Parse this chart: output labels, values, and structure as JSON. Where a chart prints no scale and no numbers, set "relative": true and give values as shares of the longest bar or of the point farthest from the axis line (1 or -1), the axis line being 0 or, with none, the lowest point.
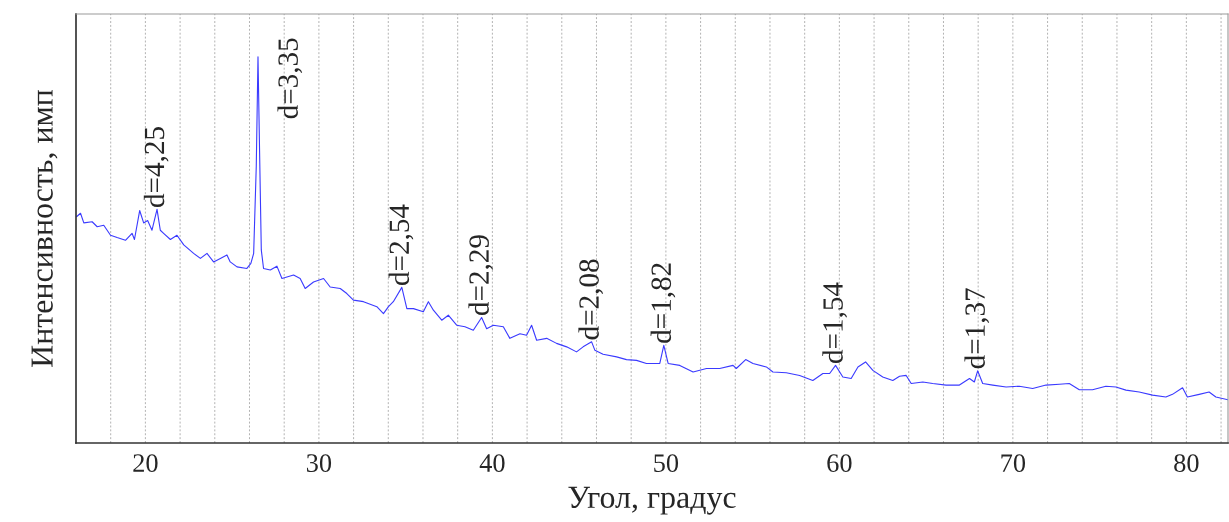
{
  "chart_data": {
    "type": "line",
    "relative": true,
    "xlabel": "Угол, градус",
    "ylabel": "Интенсивность, имп",
    "xlim": [
      16,
      82.4
    ],
    "xticks": [
      {
        "value": 18,
        "label": null
      },
      20,
      {
        "value": 22,
        "label": null
      },
      {
        "value": 24,
        "label": null
      },
      {
        "value": 26,
        "label": null
      },
      {
        "value": 28,
        "label": null
      },
      30,
      {
        "value": 32,
        "label": null
      },
      {
        "value": 34,
        "label": null
      },
      {
        "value": 36,
        "label": null
      },
      {
        "value": 38,
        "label": null
      },
      40,
      {
        "value": 42,
        "label": null
      },
      {
        "value": 44,
        "label": null
      },
      {
        "value": 46,
        "label": null
      },
      {
        "value": 48,
        "label": null
      },
      50,
      {
        "value": 52,
        "label": null
      },
      {
        "value": 54,
        "label": null
      },
      {
        "value": 56,
        "label": null
      },
      {
        "value": 58,
        "label": null
      },
      60,
      {
        "value": 62,
        "label": null
      },
      {
        "value": 64,
        "label": null
      },
      {
        "value": 66,
        "label": null
      },
      {
        "value": 68,
        "label": null
      },
      70,
      {
        "value": 72,
        "label": null
      },
      {
        "value": 74,
        "label": null
      },
      {
        "value": 76,
        "label": null
      },
      {
        "value": 78,
        "label": null
      },
      80,
      {
        "value": 82,
        "label": null
      }
    ],
    "grid": "x",
    "marker": "none",
    "line_style": "solid",
    "series": [
      {
        "color": "#3a3aff",
        "x": [
          16.03,
          16.26,
          16.45,
          16.93,
          17.22,
          17.6,
          17.99,
          18.37,
          18.85,
          19.23,
          19.37,
          19.67,
          19.9,
          20.13,
          20.38,
          20.67,
          20.86,
          21.05,
          21.44,
          21.82,
          22.21,
          22.78,
          23.17,
          23.55,
          23.93,
          24.32,
          24.7,
          24.89,
          25.28,
          25.85,
          26.08,
          26.24,
          26.39,
          26.49,
          26.58,
          26.68,
          26.81,
          27.2,
          27.58,
          27.87,
          28.54,
          28.92,
          29.21,
          29.69,
          30.27,
          30.65,
          31.23,
          31.61,
          31.99,
          32.57,
          33.34,
          33.72,
          34.01,
          34.29,
          34.78,
          35.07,
          35.45,
          36.02,
          36.31,
          36.6,
          37.08,
          37.46,
          37.94,
          38.42,
          38.9,
          39.38,
          39.67,
          40.05,
          40.63,
          41.01,
          41.59,
          41.97,
          42.26,
          42.55,
          43.13,
          43.7,
          44.28,
          44.85,
          45.23,
          45.72,
          45.91,
          46.38,
          47.16,
          47.73,
          48.31,
          48.88,
          49.65,
          49.88,
          50.13,
          50.8,
          51.57,
          52.34,
          53.1,
          53.87,
          54.06,
          54.6,
          55.02,
          55.79,
          56.17,
          56.94,
          57.71,
          58.47,
          59.05,
          59.44,
          59.78,
          60.2,
          60.68,
          61.07,
          61.51,
          61.93,
          62.5,
          63.08,
          63.47,
          63.85,
          64.14,
          64.81,
          65.38,
          66.15,
          66.92,
          67.5,
          67.78,
          67.97,
          68.26,
          68.84,
          69.61,
          70.37,
          71.14,
          71.91,
          72.68,
          73.25,
          73.83,
          74.59,
          75.36,
          75.94,
          76.52,
          77.28,
          78.05,
          78.82,
          79.2,
          79.78,
          80.06,
          80.74,
          81.31,
          81.7,
          82.4
        ],
        "values": [
          0.586,
          0.595,
          0.57,
          0.573,
          0.56,
          0.564,
          0.538,
          0.532,
          0.525,
          0.543,
          0.527,
          0.602,
          0.57,
          0.576,
          0.551,
          0.605,
          0.551,
          0.543,
          0.527,
          0.538,
          0.513,
          0.491,
          0.478,
          0.491,
          0.469,
          0.478,
          0.487,
          0.469,
          0.456,
          0.452,
          0.465,
          0.491,
          0.716,
          1.0,
          0.759,
          0.5,
          0.452,
          0.448,
          0.458,
          0.426,
          0.435,
          0.426,
          0.4,
          0.417,
          0.426,
          0.404,
          0.4,
          0.387,
          0.37,
          0.366,
          0.353,
          0.335,
          0.353,
          0.366,
          0.403,
          0.348,
          0.348,
          0.34,
          0.366,
          0.344,
          0.318,
          0.331,
          0.305,
          0.301,
          0.292,
          0.325,
          0.296,
          0.305,
          0.301,
          0.271,
          0.283,
          0.279,
          0.305,
          0.266,
          0.271,
          0.258,
          0.249,
          0.236,
          0.249,
          0.262,
          0.24,
          0.23,
          0.223,
          0.216,
          0.214,
          0.206,
          0.206,
          0.253,
          0.206,
          0.201,
          0.184,
          0.193,
          0.193,
          0.201,
          0.193,
          0.216,
          0.206,
          0.197,
          0.184,
          0.182,
          0.175,
          0.162,
          0.18,
          0.18,
          0.201,
          0.171,
          0.167,
          0.197,
          0.21,
          0.188,
          0.171,
          0.162,
          0.173,
          0.175,
          0.154,
          0.158,
          0.154,
          0.15,
          0.15,
          0.167,
          0.158,
          0.187,
          0.154,
          0.15,
          0.145,
          0.147,
          0.141,
          0.15,
          0.152,
          0.154,
          0.138,
          0.138,
          0.147,
          0.145,
          0.137,
          0.132,
          0.124,
          0.119,
          0.126,
          0.143,
          0.119,
          0.126,
          0.132,
          0.119,
          0.112
        ]
      }
    ],
    "annotations": [
      {
        "text": "d=4,25",
        "x": 20.67,
        "y": 0.605
      },
      {
        "text": "d=3,35",
        "x": 26.49,
        "y": 1.0
      },
      {
        "text": "d=2,54",
        "x": 34.78,
        "y": 0.403
      },
      {
        "text": "d=2,29",
        "x": 39.38,
        "y": 0.325
      },
      {
        "text": "d=2,08",
        "x": 45.72,
        "y": 0.262
      },
      {
        "text": "d=1,82",
        "x": 49.88,
        "y": 0.253
      },
      {
        "text": "d=1,54",
        "x": 59.78,
        "y": 0.201
      },
      {
        "text": "d=1,37",
        "x": 67.97,
        "y": 0.187
      }
    ]
  }
}
